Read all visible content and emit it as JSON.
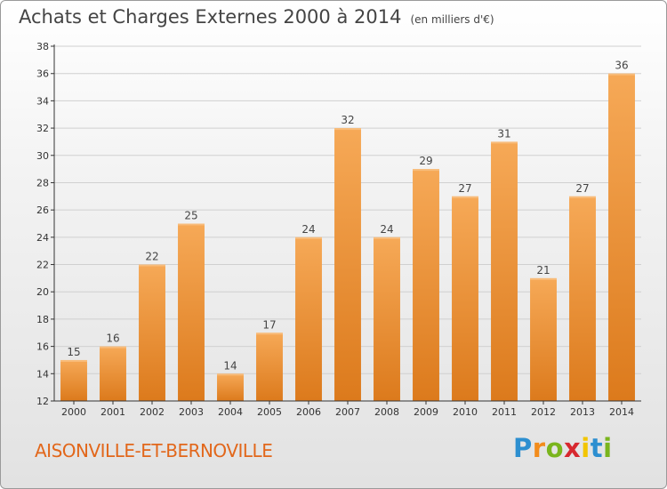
{
  "title": "Achats et Charges Externes 2000 à 2014",
  "unit": "(en milliers d'€)",
  "commune": "AISONVILLE-ET-BERNOVILLE",
  "logo": {
    "letters": [
      "P",
      "r",
      "o",
      "x",
      "i",
      "t",
      "i"
    ],
    "colors": [
      "#2d8fd0",
      "#f28c1c",
      "#7ab51d",
      "#d7282f",
      "#f2c500",
      "#2d8fd0",
      "#7ab51d"
    ]
  },
  "colors": {
    "bar_light": "#f6a957",
    "bar_dark": "#dc7a1c",
    "axis": "#333333",
    "grid": "#d0d0d0"
  },
  "chart_data": {
    "type": "bar",
    "categories": [
      "2000",
      "2001",
      "2002",
      "2003",
      "2004",
      "2005",
      "2006",
      "2007",
      "2008",
      "2009",
      "2010",
      "2011",
      "2012",
      "2013",
      "2014"
    ],
    "values": [
      15,
      16,
      22,
      25,
      14,
      17,
      24,
      32,
      24,
      29,
      27,
      31,
      21,
      27,
      36
    ],
    "ylim": [
      12,
      38
    ],
    "yticks": [
      12,
      14,
      16,
      18,
      20,
      22,
      24,
      26,
      28,
      30,
      32,
      34,
      36,
      38
    ],
    "grid": true,
    "data_labels": true
  }
}
